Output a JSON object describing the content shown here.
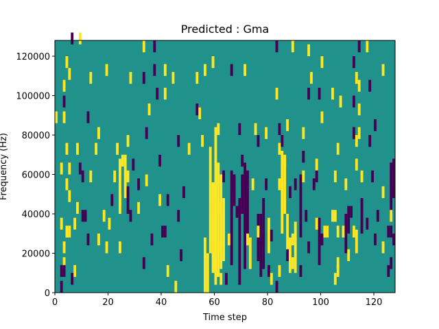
{
  "chart_data": {
    "type": "heatmap",
    "title": "Predicted : Gma",
    "xlabel": "Time step",
    "ylabel": "Frequency (Hz)",
    "xlim": [
      0,
      128
    ],
    "ylim": [
      0,
      128000
    ],
    "x_ticks": [
      0,
      20,
      40,
      60,
      80,
      100,
      120
    ],
    "y_ticks": [
      0,
      20000,
      40000,
      60000,
      80000,
      100000,
      120000
    ],
    "grid": false,
    "legend": "none",
    "colors": {
      "background": "#21918c",
      "high": "#fde725",
      "low": "#440154"
    },
    "cells": [
      {
        "x": 2,
        "y": 0,
        "level": "low"
      },
      {
        "x": 6,
        "y": 126000,
        "level": "low"
      },
      {
        "x": 9,
        "y": 126000,
        "level": "high"
      },
      {
        "x": 33,
        "y": 122000,
        "level": "high"
      },
      {
        "x": 37,
        "y": 122000,
        "level": "low"
      },
      {
        "x": 83,
        "y": 122000,
        "level": "low"
      },
      {
        "x": 89,
        "y": 122000,
        "level": "high"
      },
      {
        "x": 95,
        "y": 120000,
        "level": "high"
      },
      {
        "x": 114,
        "y": 122000,
        "level": "low"
      },
      {
        "x": 117,
        "y": 122000,
        "level": "high"
      },
      {
        "x": 4,
        "y": 114000,
        "level": "high"
      },
      {
        "x": 5,
        "y": 108000,
        "level": "high"
      },
      {
        "x": 19,
        "y": 110000,
        "level": "high"
      },
      {
        "x": 37,
        "y": 110000,
        "level": "low"
      },
      {
        "x": 41,
        "y": 110000,
        "level": "high"
      },
      {
        "x": 56,
        "y": 110000,
        "level": "high"
      },
      {
        "x": 59,
        "y": 114000,
        "level": "high"
      },
      {
        "x": 66,
        "y": 110000,
        "level": "low"
      },
      {
        "x": 71,
        "y": 110000,
        "level": "high"
      },
      {
        "x": 100,
        "y": 114000,
        "level": "high"
      },
      {
        "x": 112,
        "y": 114000,
        "level": "low"
      },
      {
        "x": 123,
        "y": 110000,
        "level": "high"
      },
      {
        "x": 3,
        "y": 102000,
        "level": "high"
      },
      {
        "x": 13,
        "y": 106000,
        "level": "high"
      },
      {
        "x": 28,
        "y": 106000,
        "level": "high"
      },
      {
        "x": 33,
        "y": 106000,
        "level": "low"
      },
      {
        "x": 44,
        "y": 106000,
        "level": "high"
      },
      {
        "x": 53,
        "y": 106000,
        "level": "high"
      },
      {
        "x": 96,
        "y": 106000,
        "level": "high"
      },
      {
        "x": 113,
        "y": 106000,
        "level": "high"
      },
      {
        "x": 114,
        "y": 102000,
        "level": "high"
      },
      {
        "x": 118,
        "y": 102000,
        "level": "low"
      },
      {
        "x": 38,
        "y": 98000,
        "level": "low"
      },
      {
        "x": 41,
        "y": 98000,
        "level": "high"
      },
      {
        "x": 83,
        "y": 98000,
        "level": "high"
      },
      {
        "x": 95,
        "y": 98000,
        "level": "low"
      },
      {
        "x": 99,
        "y": 98000,
        "level": "low"
      },
      {
        "x": 104,
        "y": 98000,
        "level": "high"
      },
      {
        "x": 3,
        "y": 94000,
        "level": "low"
      },
      {
        "x": 107,
        "y": 94000,
        "level": "high"
      },
      {
        "x": 112,
        "y": 94000,
        "level": "low"
      },
      {
        "x": 35,
        "y": 90000,
        "level": "high"
      },
      {
        "x": 53,
        "y": 90000,
        "level": "low"
      },
      {
        "x": 54,
        "y": 88000,
        "level": "high"
      },
      {
        "x": 114,
        "y": 90000,
        "level": "high"
      },
      {
        "x": 0,
        "y": 86000,
        "level": "high"
      },
      {
        "x": 3,
        "y": 86000,
        "level": "high"
      },
      {
        "x": 12,
        "y": 86000,
        "level": "low"
      },
      {
        "x": 100,
        "y": 86000,
        "level": "high"
      },
      {
        "x": 87,
        "y": 82000,
        "level": "high"
      },
      {
        "x": 120,
        "y": 82000,
        "level": "low"
      },
      {
        "x": 16,
        "y": 78000,
        "level": "high"
      },
      {
        "x": 34,
        "y": 78000,
        "level": "low"
      },
      {
        "x": 61,
        "y": 80000,
        "level": "high"
      },
      {
        "x": 69,
        "y": 80000,
        "level": "low"
      },
      {
        "x": 75,
        "y": 80000,
        "level": "high"
      },
      {
        "x": 79,
        "y": 78000,
        "level": "high"
      },
      {
        "x": 84,
        "y": 80000,
        "level": "low"
      },
      {
        "x": 93,
        "y": 78000,
        "level": "high"
      },
      {
        "x": 112,
        "y": 78000,
        "level": "low"
      },
      {
        "x": 114,
        "y": 78000,
        "level": "high"
      },
      {
        "x": 4,
        "y": 70000,
        "level": "high"
      },
      {
        "x": 8,
        "y": 70000,
        "level": "high"
      },
      {
        "x": 15,
        "y": 70000,
        "level": "high"
      },
      {
        "x": 23,
        "y": 70000,
        "level": "high"
      },
      {
        "x": 27,
        "y": 74000,
        "level": "high"
      },
      {
        "x": 46,
        "y": 74000,
        "level": "low"
      },
      {
        "x": 50,
        "y": 70000,
        "level": "high"
      },
      {
        "x": 55,
        "y": 74000,
        "level": "high"
      },
      {
        "x": 76,
        "y": 74000,
        "level": "low"
      },
      {
        "x": 84,
        "y": 70000,
        "level": "high"
      },
      {
        "x": 85,
        "y": 74000,
        "level": "low"
      },
      {
        "x": 106,
        "y": 70000,
        "level": "high"
      },
      {
        "x": 113,
        "y": 74000,
        "level": "high"
      },
      {
        "x": 118,
        "y": 74000,
        "level": "low"
      },
      {
        "x": 2,
        "y": 60000,
        "level": "high"
      },
      {
        "x": 5,
        "y": 60000,
        "level": "high"
      },
      {
        "x": 9,
        "y": 60000,
        "level": "low"
      },
      {
        "x": 24,
        "y": 62000,
        "level": "high"
      },
      {
        "x": 25,
        "y": 64000,
        "level": "high"
      },
      {
        "x": 29,
        "y": 62000,
        "level": "low"
      },
      {
        "x": 39,
        "y": 64000,
        "level": "low"
      },
      {
        "x": 70,
        "y": 64000,
        "level": "low"
      },
      {
        "x": 86,
        "y": 64000,
        "level": "high"
      },
      {
        "x": 93,
        "y": 66000,
        "level": "low"
      },
      {
        "x": 98,
        "y": 62000,
        "level": "high"
      },
      {
        "x": 113,
        "y": 62000,
        "level": "high"
      },
      {
        "x": 127,
        "y": 62000,
        "level": "low"
      },
      {
        "x": 10,
        "y": 56000,
        "level": "low"
      },
      {
        "x": 13,
        "y": 56000,
        "level": "high"
      },
      {
        "x": 22,
        "y": 56000,
        "level": "high"
      },
      {
        "x": 27,
        "y": 56000,
        "level": "high"
      },
      {
        "x": 34,
        "y": 54000,
        "level": "high"
      },
      {
        "x": 63,
        "y": 56000,
        "level": "low"
      },
      {
        "x": 93,
        "y": 56000,
        "level": "high"
      },
      {
        "x": 98,
        "y": 56000,
        "level": "low"
      },
      {
        "x": 105,
        "y": 56000,
        "level": "high"
      },
      {
        "x": 115,
        "y": 56000,
        "level": "high"
      },
      {
        "x": 119,
        "y": 56000,
        "level": "low"
      },
      {
        "x": 4,
        "y": 52000,
        "level": "high"
      },
      {
        "x": 31,
        "y": 52000,
        "level": "low"
      },
      {
        "x": 67,
        "y": 52000,
        "level": "low"
      },
      {
        "x": 74,
        "y": 52000,
        "level": "high"
      },
      {
        "x": 79,
        "y": 52000,
        "level": "low"
      },
      {
        "x": 84,
        "y": 52000,
        "level": "high"
      },
      {
        "x": 90,
        "y": 52000,
        "level": "low"
      },
      {
        "x": 97,
        "y": 52000,
        "level": "low"
      },
      {
        "x": 109,
        "y": 52000,
        "level": "high"
      },
      {
        "x": 5,
        "y": 46000,
        "level": "high"
      },
      {
        "x": 24,
        "y": 44000,
        "level": "high"
      },
      {
        "x": 27,
        "y": 48000,
        "level": "low"
      },
      {
        "x": 48,
        "y": 48000,
        "level": "low"
      },
      {
        "x": 88,
        "y": 48000,
        "level": "low"
      },
      {
        "x": 123,
        "y": 48000,
        "level": "high"
      },
      {
        "x": 127,
        "y": 48000,
        "level": "low"
      },
      {
        "x": 21,
        "y": 44000,
        "level": "low"
      },
      {
        "x": 39,
        "y": 44000,
        "level": "high"
      },
      {
        "x": 42,
        "y": 44000,
        "level": "low"
      },
      {
        "x": 8,
        "y": 40000,
        "level": "high"
      },
      {
        "x": 10,
        "y": 36000,
        "level": "low"
      },
      {
        "x": 11,
        "y": 36000,
        "level": "low"
      },
      {
        "x": 18,
        "y": 36000,
        "level": "high"
      },
      {
        "x": 28,
        "y": 36000,
        "level": "low"
      },
      {
        "x": 31,
        "y": 40000,
        "level": "high"
      },
      {
        "x": 46,
        "y": 36000,
        "level": "low"
      },
      {
        "x": 61,
        "y": 40000,
        "level": "high"
      },
      {
        "x": 68,
        "y": 38000,
        "level": "low"
      },
      {
        "x": 94,
        "y": 36000,
        "level": "low"
      },
      {
        "x": 104,
        "y": 36000,
        "level": "high"
      },
      {
        "x": 105,
        "y": 36000,
        "level": "high"
      },
      {
        "x": 110,
        "y": 38000,
        "level": "low"
      },
      {
        "x": 111,
        "y": 38000,
        "level": "low"
      },
      {
        "x": 121,
        "y": 36000,
        "level": "low"
      },
      {
        "x": 126,
        "y": 36000,
        "level": "high"
      },
      {
        "x": 2,
        "y": 32000,
        "level": "high"
      },
      {
        "x": 7,
        "y": 32000,
        "level": "high"
      },
      {
        "x": 20,
        "y": 32000,
        "level": "high"
      },
      {
        "x": 98,
        "y": 32000,
        "level": "high"
      },
      {
        "x": 117,
        "y": 32000,
        "level": "low"
      },
      {
        "x": 4,
        "y": 28000,
        "level": "high"
      },
      {
        "x": 5,
        "y": 28000,
        "level": "high"
      },
      {
        "x": 40,
        "y": 28000,
        "level": "low"
      },
      {
        "x": 41,
        "y": 28000,
        "level": "low"
      },
      {
        "x": 76,
        "y": 28000,
        "level": "high"
      },
      {
        "x": 81,
        "y": 26000,
        "level": "low"
      },
      {
        "x": 101,
        "y": 28000,
        "level": "high"
      },
      {
        "x": 102,
        "y": 28000,
        "level": "high"
      },
      {
        "x": 106,
        "y": 28000,
        "level": "high"
      },
      {
        "x": 108,
        "y": 28000,
        "level": "high"
      },
      {
        "x": 112,
        "y": 28000,
        "level": "high"
      },
      {
        "x": 125,
        "y": 28000,
        "level": "low"
      },
      {
        "x": 126,
        "y": 28000,
        "level": "low"
      },
      {
        "x": 12,
        "y": 24000,
        "level": "low"
      },
      {
        "x": 16,
        "y": 24000,
        "level": "high"
      },
      {
        "x": 36,
        "y": 24000,
        "level": "low"
      },
      {
        "x": 65,
        "y": 24000,
        "level": "high"
      },
      {
        "x": 72,
        "y": 24000,
        "level": "high"
      },
      {
        "x": 77,
        "y": 24000,
        "level": "low"
      },
      {
        "x": 78,
        "y": 24000,
        "level": "low"
      },
      {
        "x": 89,
        "y": 24000,
        "level": "high"
      },
      {
        "x": 100,
        "y": 24000,
        "level": "low"
      },
      {
        "x": 120,
        "y": 24000,
        "level": "low"
      },
      {
        "x": 127,
        "y": 24000,
        "level": "low"
      },
      {
        "x": 3,
        "y": 20000,
        "level": "high"
      },
      {
        "x": 19,
        "y": 20000,
        "level": "high"
      },
      {
        "x": 24,
        "y": 20000,
        "level": "high"
      },
      {
        "x": 61,
        "y": 20000,
        "level": "high"
      },
      {
        "x": 95,
        "y": 20000,
        "level": "low"
      },
      {
        "x": 123,
        "y": 20000,
        "level": "high"
      },
      {
        "x": 47,
        "y": 16000,
        "level": "low"
      },
      {
        "x": 87,
        "y": 16000,
        "level": "low"
      },
      {
        "x": 99,
        "y": 14000,
        "level": "low"
      },
      {
        "x": 110,
        "y": 16000,
        "level": "high"
      },
      {
        "x": 3,
        "y": 12000,
        "level": "high"
      },
      {
        "x": 33,
        "y": 12000,
        "level": "low"
      },
      {
        "x": 89,
        "y": 12000,
        "level": "high"
      },
      {
        "x": 106,
        "y": 12000,
        "level": "high"
      },
      {
        "x": 126,
        "y": 12000,
        "level": "low"
      },
      {
        "x": 2,
        "y": 8000,
        "level": "low"
      },
      {
        "x": 3,
        "y": 8000,
        "level": "low"
      },
      {
        "x": 7,
        "y": 8000,
        "level": "high"
      },
      {
        "x": 42,
        "y": 8000,
        "level": "high"
      },
      {
        "x": 80,
        "y": 8000,
        "level": "low"
      },
      {
        "x": 84,
        "y": 8000,
        "level": "high"
      },
      {
        "x": 92,
        "y": 8000,
        "level": "low"
      },
      {
        "x": 106,
        "y": 8000,
        "level": "high"
      },
      {
        "x": 125,
        "y": 8000,
        "level": "low"
      },
      {
        "x": 6,
        "y": 4000,
        "level": "low"
      },
      {
        "x": 81,
        "y": 4000,
        "level": "high"
      },
      {
        "x": 105,
        "y": 4000,
        "level": "high"
      },
      {
        "x": 45,
        "y": 0,
        "level": "high"
      },
      {
        "x": 83,
        "y": 0,
        "level": "low"
      },
      {
        "x": 60,
        "y": 4000,
        "level": "high"
      },
      {
        "x": 62,
        "y": 4000,
        "level": "high"
      },
      {
        "x": 64,
        "y": 4000,
        "level": "low"
      }
    ],
    "vertical_runs": [
      {
        "x": 56,
        "y_start": 0,
        "y_end": 28000,
        "level": "high"
      },
      {
        "x": 57,
        "y_start": 0,
        "y_end": 20000,
        "level": "high"
      },
      {
        "x": 58,
        "y_start": 20000,
        "y_end": 74000,
        "level": "high"
      },
      {
        "x": 59,
        "y_start": 10000,
        "y_end": 56000,
        "level": "high"
      },
      {
        "x": 60,
        "y_start": 8000,
        "y_end": 84000,
        "level": "high"
      },
      {
        "x": 61,
        "y_start": 8000,
        "y_end": 66000,
        "level": "high"
      },
      {
        "x": 62,
        "y_start": 12000,
        "y_end": 60000,
        "level": "high"
      },
      {
        "x": 63,
        "y_start": 16000,
        "y_end": 48000,
        "level": "high"
      },
      {
        "x": 66,
        "y_start": 14000,
        "y_end": 62000,
        "level": "low"
      },
      {
        "x": 67,
        "y_start": 44000,
        "y_end": 60000,
        "level": "low"
      },
      {
        "x": 69,
        "y_start": 4000,
        "y_end": 48000,
        "level": "low"
      },
      {
        "x": 71,
        "y_start": 12000,
        "y_end": 66000,
        "level": "low"
      },
      {
        "x": 72,
        "y_start": 30000,
        "y_end": 62000,
        "level": "low"
      },
      {
        "x": 73,
        "y_start": 12000,
        "y_end": 28000,
        "level": "high"
      },
      {
        "x": 76,
        "y_start": 16000,
        "y_end": 40000,
        "level": "low"
      },
      {
        "x": 77,
        "y_start": 8000,
        "y_end": 40000,
        "level": "low"
      },
      {
        "x": 78,
        "y_start": 12000,
        "y_end": 48000,
        "level": "low"
      },
      {
        "x": 80,
        "y_start": 20000,
        "y_end": 38000,
        "level": "high"
      },
      {
        "x": 85,
        "y_start": 30000,
        "y_end": 72000,
        "level": "high"
      },
      {
        "x": 86,
        "y_start": 40000,
        "y_end": 68000,
        "level": "high"
      },
      {
        "x": 87,
        "y_start": 20000,
        "y_end": 40000,
        "level": "high"
      },
      {
        "x": 88,
        "y_start": 10000,
        "y_end": 28000,
        "level": "high"
      },
      {
        "x": 90,
        "y_start": 10000,
        "y_end": 36000,
        "level": "high"
      },
      {
        "x": 92,
        "y_start": 28000,
        "y_end": 60000,
        "level": "low"
      },
      {
        "x": 99,
        "y_start": 20000,
        "y_end": 38000,
        "level": "low"
      },
      {
        "x": 109,
        "y_start": 20000,
        "y_end": 40000,
        "level": "low"
      },
      {
        "x": 110,
        "y_start": 30000,
        "y_end": 40000,
        "level": "low"
      },
      {
        "x": 113,
        "y_start": 20000,
        "y_end": 32000,
        "level": "high"
      },
      {
        "x": 126,
        "y_start": 40000,
        "y_end": 66000,
        "level": "low"
      },
      {
        "x": 127,
        "y_start": 48000,
        "y_end": 66000,
        "level": "low"
      },
      {
        "x": 24,
        "y_start": 40000,
        "y_end": 66000,
        "level": "high"
      },
      {
        "x": 26,
        "y_start": 48000,
        "y_end": 70000,
        "level": "high"
      },
      {
        "x": 27,
        "y_start": 40000,
        "y_end": 52000,
        "level": "low"
      },
      {
        "x": 70,
        "y_start": 40000,
        "y_end": 60000,
        "level": "low"
      },
      {
        "x": 115,
        "y_start": 30000,
        "y_end": 48000,
        "level": "low"
      }
    ]
  }
}
